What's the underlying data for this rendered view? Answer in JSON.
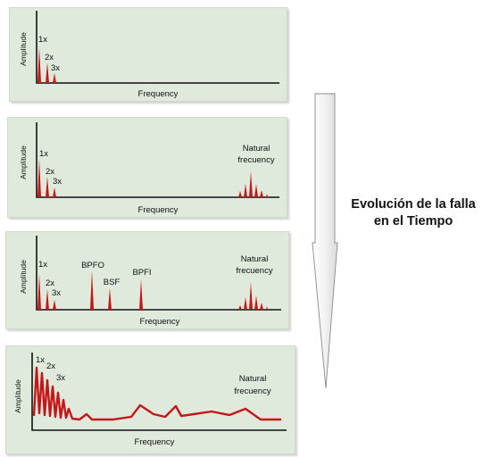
{
  "caption": {
    "line1": "Evolución de la falla",
    "line2": "en el Tiempo"
  },
  "axis_labels": {
    "x": "Frequency",
    "y": "Amplitude"
  },
  "panels": [
    {
      "stage": 1,
      "peak_labels": {
        "h1": "1x",
        "h2": "2x",
        "h3": "3x"
      }
    },
    {
      "stage": 2,
      "peak_labels": {
        "h1": "1x",
        "h2": "2x",
        "h3": "3x"
      },
      "natural_label": [
        "Natural",
        "frecuency"
      ]
    },
    {
      "stage": 3,
      "peak_labels": {
        "h1": "1x",
        "h2": "2x",
        "h3": "3x"
      },
      "bearing_labels": {
        "bpfo": "BPFO",
        "bsf": "BSF",
        "bpfi": "BPFI"
      },
      "natural_label": [
        "Natural",
        "frecuency"
      ]
    },
    {
      "stage": 4,
      "peak_labels": {
        "h1": "1x",
        "h2": "2x",
        "h3": "3x"
      },
      "natural_label": [
        "Natural",
        "frecuency"
      ]
    }
  ],
  "colors": {
    "panel_background": "#dfe9dc",
    "spectrum": "#c51717",
    "axis": "#111111"
  },
  "icons": {
    "time_arrow": "down-arrow-icon"
  }
}
